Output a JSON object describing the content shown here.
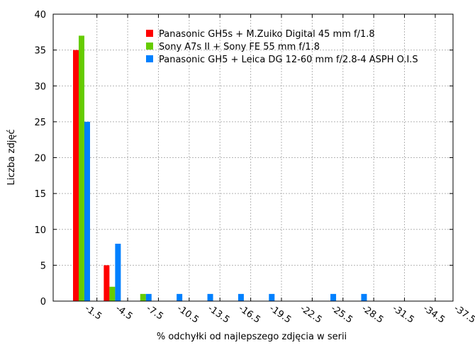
{
  "chart_data": {
    "type": "bar",
    "xlabel": "% odchyłki od najlepszego zdjęcia w serii",
    "ylabel": "Liczba zdjęć",
    "ylim": [
      0,
      40
    ],
    "yticks": [
      "0",
      "5",
      "10",
      "15",
      "20",
      "25",
      "30",
      "35",
      "40"
    ],
    "grid": true,
    "legend_position": "top-right",
    "categories": [
      "-1.5",
      "-4.5",
      "-7.5",
      "-10.5",
      "-13.5",
      "-16.5",
      "-19.5",
      "-22.5",
      "-25.5",
      "-28.5",
      "-31.5",
      "-34.5",
      "-37.5"
    ],
    "series": [
      {
        "name": "Panasonic GH5s + M.Zuiko Digital 45 mm f/1.8",
        "color": "#ff0000",
        "values": [
          35,
          5,
          0,
          0,
          0,
          0,
          0,
          0,
          0,
          0,
          0,
          0,
          0
        ]
      },
      {
        "name": "Sony A7s II + Sony FE 55 mm f/1.8",
        "color": "#66cc00",
        "values": [
          37,
          2,
          1,
          0,
          0,
          0,
          0,
          0,
          0,
          0,
          0,
          0,
          0
        ]
      },
      {
        "name": "Panasonic GH5 + Leica DG 12-60 mm f/2.8-4 ASPH O.I.S",
        "color": "#0080ff",
        "values": [
          25,
          8,
          1,
          1,
          1,
          1,
          1,
          0,
          1,
          1,
          0,
          0,
          0
        ]
      }
    ]
  }
}
